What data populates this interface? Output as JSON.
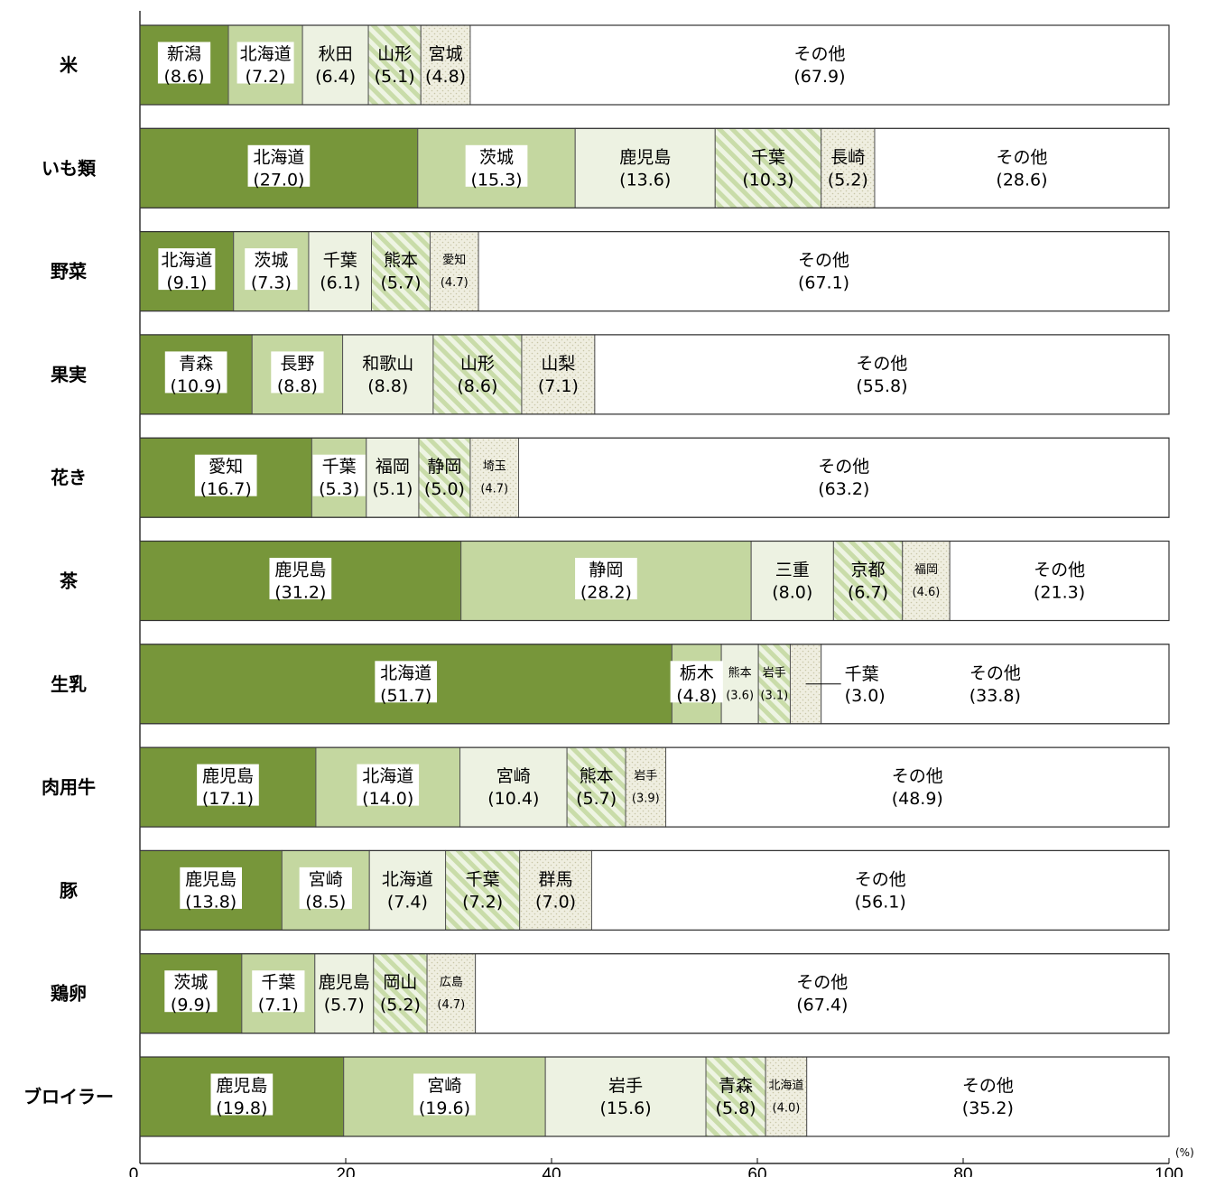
{
  "chart_data": {
    "type": "bar",
    "stacked": true,
    "orientation": "horizontal",
    "x_unit": "(%)",
    "xlim": [
      0,
      100
    ],
    "x_ticks": [
      "0",
      "20",
      "40",
      "60",
      "80",
      "100"
    ],
    "colors": {
      "rank1": "#77963a",
      "rank2": "#c4d7a0",
      "rank3": "#edf2e2",
      "rank4": "#d6e6bd",
      "rank5": "#efeee0",
      "other": "#ffffff",
      "border": "#555555",
      "label_box": "#ffffff"
    },
    "categories": [
      "米",
      "いも類",
      "野菜",
      "果実",
      "花き",
      "茶",
      "生乳",
      "肉用牛",
      "豚",
      "鶏卵",
      "ブロイラー"
    ],
    "rows": [
      {
        "category": "米",
        "segments": [
          {
            "name": "新潟",
            "value": 8.6,
            "value_label": "(8.6)"
          },
          {
            "name": "北海道",
            "value": 7.2,
            "value_label": "(7.2)"
          },
          {
            "name": "秋田",
            "value": 6.4,
            "value_label": "(6.4)"
          },
          {
            "name": "山形",
            "value": 5.1,
            "value_label": "(5.1)"
          },
          {
            "name": "宮城",
            "value": 4.8,
            "value_label": "(4.8)"
          },
          {
            "name": "その他",
            "value": 67.9,
            "value_label": "(67.9)"
          }
        ]
      },
      {
        "category": "いも類",
        "segments": [
          {
            "name": "北海道",
            "value": 27.0,
            "value_label": "(27.0)"
          },
          {
            "name": "茨城",
            "value": 15.3,
            "value_label": "(15.3)"
          },
          {
            "name": "鹿児島",
            "value": 13.6,
            "value_label": "(13.6)"
          },
          {
            "name": "千葉",
            "value": 10.3,
            "value_label": "(10.3)"
          },
          {
            "name": "長崎",
            "value": 5.2,
            "value_label": "(5.2)"
          },
          {
            "name": "その他",
            "value": 28.6,
            "value_label": "(28.6)"
          }
        ]
      },
      {
        "category": "野菜",
        "segments": [
          {
            "name": "北海道",
            "value": 9.1,
            "value_label": "(9.1)"
          },
          {
            "name": "茨城",
            "value": 7.3,
            "value_label": "(7.3)"
          },
          {
            "name": "千葉",
            "value": 6.1,
            "value_label": "(6.1)"
          },
          {
            "name": "熊本",
            "value": 5.7,
            "value_label": "(5.7)"
          },
          {
            "name": "愛知",
            "value": 4.7,
            "value_label": "(4.7)"
          },
          {
            "name": "その他",
            "value": 67.1,
            "value_label": "(67.1)"
          }
        ]
      },
      {
        "category": "果実",
        "segments": [
          {
            "name": "青森",
            "value": 10.9,
            "value_label": "(10.9)"
          },
          {
            "name": "長野",
            "value": 8.8,
            "value_label": "(8.8)"
          },
          {
            "name": "和歌山",
            "value": 8.8,
            "value_label": "(8.8)"
          },
          {
            "name": "山形",
            "value": 8.6,
            "value_label": "(8.6)"
          },
          {
            "name": "山梨",
            "value": 7.1,
            "value_label": "(7.1)"
          },
          {
            "name": "その他",
            "value": 55.8,
            "value_label": "(55.8)"
          }
        ]
      },
      {
        "category": "花き",
        "segments": [
          {
            "name": "愛知",
            "value": 16.7,
            "value_label": "(16.7)"
          },
          {
            "name": "千葉",
            "value": 5.3,
            "value_label": "(5.3)"
          },
          {
            "name": "福岡",
            "value": 5.1,
            "value_label": "(5.1)"
          },
          {
            "name": "静岡",
            "value": 5.0,
            "value_label": "(5.0)"
          },
          {
            "name": "埼玉",
            "value": 4.7,
            "value_label": "(4.7)"
          },
          {
            "name": "その他",
            "value": 63.2,
            "value_label": "(63.2)"
          }
        ]
      },
      {
        "category": "茶",
        "segments": [
          {
            "name": "鹿児島",
            "value": 31.2,
            "value_label": "(31.2)"
          },
          {
            "name": "静岡",
            "value": 28.2,
            "value_label": "(28.2)"
          },
          {
            "name": "三重",
            "value": 8.0,
            "value_label": "(8.0)"
          },
          {
            "name": "京都",
            "value": 6.7,
            "value_label": "(6.7)"
          },
          {
            "name": "福岡",
            "value": 4.6,
            "value_label": "(4.6)"
          },
          {
            "name": "その他",
            "value": 21.3,
            "value_label": "(21.3)"
          }
        ]
      },
      {
        "category": "生乳",
        "segments": [
          {
            "name": "北海道",
            "value": 51.7,
            "value_label": "(51.7)"
          },
          {
            "name": "栃木",
            "value": 4.8,
            "value_label": "(4.8)"
          },
          {
            "name": "熊本",
            "value": 3.6,
            "value_label": "(3.6)"
          },
          {
            "name": "岩手",
            "value": 3.1,
            "value_label": "(3.1)"
          },
          {
            "name": "千葉",
            "value": 3.0,
            "value_label": "(3.0)"
          },
          {
            "name": "その他",
            "value": 33.8,
            "value_label": "(33.8)"
          }
        ]
      },
      {
        "category": "肉用牛",
        "segments": [
          {
            "name": "鹿児島",
            "value": 17.1,
            "value_label": "(17.1)"
          },
          {
            "name": "北海道",
            "value": 14.0,
            "value_label": "(14.0)"
          },
          {
            "name": "宮崎",
            "value": 10.4,
            "value_label": "(10.4)"
          },
          {
            "name": "熊本",
            "value": 5.7,
            "value_label": "(5.7)"
          },
          {
            "name": "岩手",
            "value": 3.9,
            "value_label": "(3.9)"
          },
          {
            "name": "その他",
            "value": 48.9,
            "value_label": "(48.9)"
          }
        ]
      },
      {
        "category": "豚",
        "segments": [
          {
            "name": "鹿児島",
            "value": 13.8,
            "value_label": "(13.8)"
          },
          {
            "name": "宮崎",
            "value": 8.5,
            "value_label": "(8.5)"
          },
          {
            "name": "北海道",
            "value": 7.4,
            "value_label": "(7.4)"
          },
          {
            "name": "千葉",
            "value": 7.2,
            "value_label": "(7.2)"
          },
          {
            "name": "群馬",
            "value": 7.0,
            "value_label": "(7.0)"
          },
          {
            "name": "その他",
            "value": 56.1,
            "value_label": "(56.1)"
          }
        ]
      },
      {
        "category": "鶏卵",
        "segments": [
          {
            "name": "茨城",
            "value": 9.9,
            "value_label": "(9.9)"
          },
          {
            "name": "千葉",
            "value": 7.1,
            "value_label": "(7.1)"
          },
          {
            "name": "鹿児島",
            "value": 5.7,
            "value_label": "(5.7)"
          },
          {
            "name": "岡山",
            "value": 5.2,
            "value_label": "(5.2)"
          },
          {
            "name": "広島",
            "value": 4.7,
            "value_label": "(4.7)"
          },
          {
            "name": "その他",
            "value": 67.4,
            "value_label": "(67.4)"
          }
        ]
      },
      {
        "category": "ブロイラー",
        "segments": [
          {
            "name": "鹿児島",
            "value": 19.8,
            "value_label": "(19.8)"
          },
          {
            "name": "宮崎",
            "value": 19.6,
            "value_label": "(19.6)"
          },
          {
            "name": "岩手",
            "value": 15.6,
            "value_label": "(15.6)"
          },
          {
            "name": "青森",
            "value": 5.8,
            "value_label": "(5.8)"
          },
          {
            "name": "北海道",
            "value": 4.0,
            "value_label": "(4.0)"
          },
          {
            "name": "その他",
            "value": 35.2,
            "value_label": "(35.2)"
          }
        ]
      }
    ]
  }
}
